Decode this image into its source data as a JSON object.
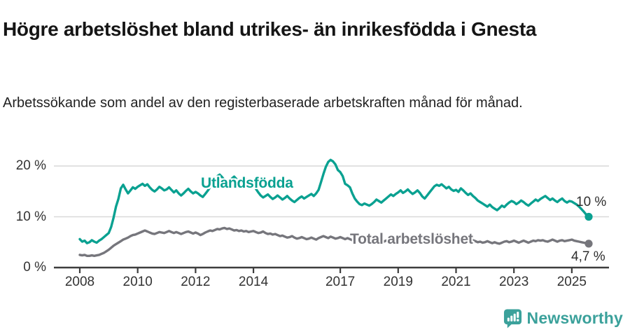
{
  "title": "Högre arbetslöshet bland utrikes- än inrikesfödda i Gnesta",
  "subtitle": "Arbetssökande som andel av den registerbaserade arbetskraften månad för månad.",
  "branding": {
    "name": "Newsworthy",
    "color": "#3ba19b"
  },
  "colors": {
    "foreign_born_line": "#0aa191",
    "total_line": "#76767c",
    "gridline": "#d9d9d9",
    "axis": "#3d3d3d",
    "tick_text": "#333333"
  },
  "chart_data": {
    "type": "line",
    "title": "Högre arbetslöshet bland utrikes- än inrikesfödda i Gnesta",
    "subtitle": "Arbetssökande som andel av den registerbaserade arbetskraften månad för månad.",
    "unit": "%",
    "frequency": "monthly",
    "x_start": "2008-01",
    "x_end": "2025-08",
    "grid": true,
    "legend_position": "inline-labels",
    "ylim": [
      0,
      22.8
    ],
    "y_ticks": [
      {
        "label": "0 %",
        "value": 0
      },
      {
        "label": "10 %",
        "value": 10
      },
      {
        "label": "20 %",
        "value": 20
      }
    ],
    "x_ticks": [
      "2008",
      "2010",
      "2012",
      "2014",
      "2017",
      "2019",
      "2021",
      "2023",
      "2025"
    ],
    "series": [
      {
        "name": "Utlandsfödda",
        "color": "#0aa191",
        "end_label": "10 %",
        "last_value": 10.0,
        "values": [
          5.6,
          5.1,
          5.3,
          4.8,
          5.0,
          5.4,
          5.1,
          4.9,
          5.3,
          5.6,
          6.0,
          6.4,
          6.8,
          8.0,
          9.8,
          12.0,
          13.5,
          15.6,
          16.3,
          15.4,
          14.6,
          15.2,
          15.8,
          15.5,
          15.9,
          16.2,
          16.5,
          16.1,
          16.4,
          15.8,
          15.3,
          15.0,
          15.4,
          15.9,
          15.6,
          15.2,
          15.4,
          15.8,
          15.3,
          14.8,
          15.2,
          14.6,
          14.2,
          14.6,
          15.1,
          15.5,
          15.0,
          14.6,
          14.9,
          14.6,
          14.2,
          13.9,
          14.5,
          15.1,
          15.8,
          16.5,
          17.4,
          18.0,
          18.3,
          17.8,
          17.2,
          16.6,
          16.9,
          17.5,
          17.9,
          17.4,
          16.8,
          17.2,
          17.7,
          17.3,
          16.6,
          16.9,
          16.2,
          15.5,
          14.8,
          14.2,
          13.8,
          14.1,
          14.4,
          13.9,
          13.5,
          13.8,
          14.2,
          13.8,
          13.4,
          13.7,
          14.1,
          13.6,
          13.2,
          12.9,
          13.3,
          13.7,
          14.0,
          13.6,
          13.9,
          14.2,
          14.5,
          14.1,
          14.6,
          15.3,
          16.8,
          18.4,
          19.8,
          20.8,
          21.2,
          20.9,
          20.3,
          19.2,
          18.8,
          18.0,
          16.5,
          16.2,
          15.8,
          14.6,
          13.6,
          13.0,
          12.5,
          12.3,
          12.6,
          12.4,
          12.2,
          12.5,
          12.9,
          13.4,
          13.1,
          12.8,
          13.2,
          13.6,
          14.0,
          14.4,
          14.1,
          14.5,
          14.8,
          15.2,
          14.7,
          15.0,
          15.4,
          14.9,
          14.5,
          14.8,
          15.2,
          14.7,
          14.0,
          13.6,
          14.2,
          14.8,
          15.4,
          16.0,
          16.3,
          16.1,
          16.4,
          16.0,
          15.6,
          15.9,
          15.4,
          15.1,
          15.3,
          14.9,
          15.6,
          15.2,
          14.7,
          14.3,
          14.6,
          14.1,
          13.7,
          13.2,
          12.9,
          12.6,
          12.3,
          12.0,
          12.4,
          11.9,
          11.6,
          11.3,
          11.7,
          12.2,
          11.9,
          12.4,
          12.8,
          13.1,
          12.9,
          12.5,
          12.8,
          13.2,
          12.9,
          12.5,
          12.2,
          12.6,
          13.0,
          13.4,
          13.1,
          13.5,
          13.8,
          14.1,
          13.7,
          13.3,
          13.6,
          13.2,
          12.9,
          13.3,
          13.6,
          13.1,
          12.8,
          13.1,
          13.0,
          12.7,
          12.4,
          12.0,
          11.5,
          11.0,
          10.4,
          10.0
        ]
      },
      {
        "name": "Total arbetslöshet",
        "color": "#76767c",
        "end_label": "4,7 %",
        "last_value": 4.7,
        "values": [
          2.5,
          2.4,
          2.5,
          2.3,
          2.3,
          2.4,
          2.3,
          2.4,
          2.5,
          2.7,
          2.9,
          3.2,
          3.5,
          3.9,
          4.3,
          4.6,
          4.9,
          5.2,
          5.5,
          5.7,
          5.9,
          6.2,
          6.4,
          6.5,
          6.7,
          6.9,
          7.1,
          7.3,
          7.1,
          6.9,
          6.7,
          6.6,
          6.8,
          7.0,
          6.9,
          6.8,
          7.0,
          7.2,
          7.0,
          6.8,
          7.0,
          6.8,
          6.6,
          6.8,
          7.0,
          7.1,
          6.9,
          6.7,
          6.9,
          6.7,
          6.4,
          6.6,
          6.9,
          7.1,
          7.3,
          7.2,
          7.4,
          7.6,
          7.5,
          7.7,
          7.8,
          7.6,
          7.7,
          7.5,
          7.3,
          7.4,
          7.2,
          7.3,
          7.1,
          7.2,
          7.0,
          7.1,
          7.2,
          7.0,
          6.8,
          6.9,
          7.1,
          6.8,
          6.6,
          6.7,
          6.5,
          6.6,
          6.4,
          6.2,
          6.3,
          6.1,
          5.9,
          6.0,
          6.2,
          5.9,
          5.7,
          5.8,
          6.0,
          5.8,
          5.6,
          5.7,
          5.9,
          5.7,
          5.5,
          5.8,
          6.0,
          6.2,
          6.0,
          5.8,
          6.1,
          5.9,
          5.7,
          5.8,
          6.0,
          5.8,
          5.6,
          5.8,
          5.6,
          5.4,
          5.3,
          5.5,
          5.7,
          5.5,
          5.3,
          5.4,
          5.6,
          5.4,
          5.2,
          5.4,
          5.6,
          5.3,
          5.1,
          5.3,
          5.5,
          5.7,
          5.6,
          5.4,
          5.5,
          5.7,
          5.5,
          5.6,
          5.8,
          5.5,
          5.3,
          5.5,
          5.7,
          5.6,
          5.4,
          5.5,
          5.7,
          5.9,
          6.2,
          6.4,
          6.3,
          6.5,
          6.3,
          6.1,
          6.2,
          6.0,
          5.8,
          5.9,
          6.0,
          6.1,
          5.9,
          5.7,
          5.8,
          5.5,
          5.3,
          5.4,
          5.2,
          5.0,
          5.1,
          4.9,
          5.0,
          5.2,
          5.0,
          4.8,
          5.0,
          4.8,
          4.7,
          4.9,
          5.1,
          5.2,
          5.0,
          5.1,
          5.3,
          5.1,
          4.9,
          5.1,
          5.3,
          5.1,
          4.9,
          5.1,
          5.3,
          5.2,
          5.4,
          5.3,
          5.4,
          5.2,
          5.1,
          5.3,
          5.5,
          5.3,
          5.1,
          5.3,
          5.4,
          5.2,
          5.3,
          5.4,
          5.5,
          5.3,
          5.2,
          5.1,
          5.0,
          4.9,
          4.8,
          4.7
        ]
      }
    ]
  }
}
